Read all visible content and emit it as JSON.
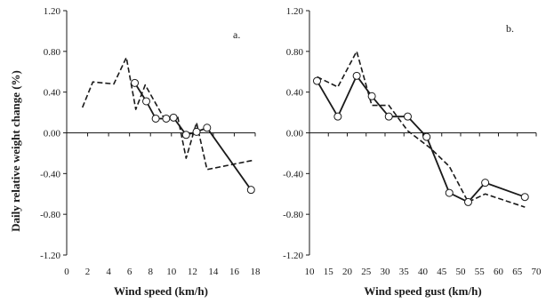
{
  "ylabel": "Daily relative weight change (%)",
  "chart_data": [
    {
      "type": "line",
      "panel_label": "a.",
      "xlabel": "Wind speed (km/h)",
      "xlim": [
        0,
        18
      ],
      "ylim": [
        -1.2,
        1.2
      ],
      "x_ticks": [
        0,
        2,
        4,
        6,
        8,
        10,
        12,
        14,
        16,
        18
      ],
      "y_ticks": [
        "-1.20",
        "-0.80",
        "-0.40",
        "0.00",
        "0.40",
        "0.80",
        "1.20"
      ],
      "grid": false,
      "series": [
        {
          "style": "dashed",
          "markers": false,
          "points": [
            [
              1.5,
              0.25
            ],
            [
              2.5,
              0.5
            ],
            [
              4.5,
              0.48
            ],
            [
              5.7,
              0.74
            ],
            [
              6.6,
              0.23
            ],
            [
              7.5,
              0.47
            ],
            [
              9.2,
              0.16
            ],
            [
              10.6,
              0.16
            ],
            [
              11.4,
              -0.25
            ],
            [
              12.4,
              0.1
            ],
            [
              13.4,
              -0.36
            ],
            [
              17.8,
              -0.27
            ]
          ]
        },
        {
          "style": "solid",
          "markers": true,
          "points": [
            [
              6.5,
              0.49
            ],
            [
              7.6,
              0.31
            ],
            [
              8.5,
              0.14
            ],
            [
              9.5,
              0.14
            ],
            [
              10.2,
              0.15
            ],
            [
              11.4,
              -0.02
            ],
            [
              12.4,
              0.01
            ],
            [
              13.4,
              0.05
            ],
            [
              17.6,
              -0.56
            ]
          ]
        }
      ]
    },
    {
      "type": "line",
      "panel_label": "b.",
      "xlabel": "Wind speed gust (km/h)",
      "xlim": [
        10,
        70
      ],
      "ylim": [
        -1.2,
        1.2
      ],
      "x_ticks": [
        10,
        15,
        20,
        25,
        30,
        35,
        40,
        45,
        50,
        55,
        60,
        65,
        70
      ],
      "y_ticks": [
        "-1.20",
        "-0.80",
        "-0.40",
        "0.00",
        "0.40",
        "0.80",
        "1.20"
      ],
      "grid": false,
      "series": [
        {
          "style": "dashed",
          "markers": false,
          "points": [
            [
              12,
              0.55
            ],
            [
              17.5,
              0.45
            ],
            [
              22.5,
              0.8
            ],
            [
              26.5,
              0.27
            ],
            [
              31,
              0.27
            ],
            [
              36,
              0.02
            ],
            [
              42,
              -0.15
            ],
            [
              47,
              -0.33
            ],
            [
              52,
              -0.68
            ],
            [
              56.5,
              -0.6
            ],
            [
              67,
              -0.73
            ]
          ]
        },
        {
          "style": "solid",
          "markers": true,
          "points": [
            [
              12,
              0.51
            ],
            [
              17.5,
              0.16
            ],
            [
              22.5,
              0.56
            ],
            [
              26.5,
              0.36
            ],
            [
              31,
              0.16
            ],
            [
              36,
              0.16
            ],
            [
              41,
              -0.04
            ],
            [
              47,
              -0.59
            ],
            [
              52,
              -0.68
            ],
            [
              56.5,
              -0.49
            ],
            [
              67,
              -0.63
            ]
          ]
        }
      ]
    }
  ]
}
